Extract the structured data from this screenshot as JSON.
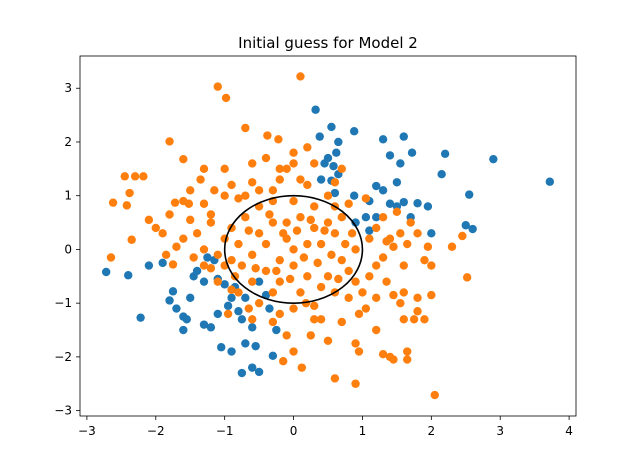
{
  "chart_data": {
    "type": "scatter",
    "title": "Initial guess for Model 2",
    "xlabel": "",
    "ylabel": "",
    "xlim": [
      -3.1,
      4.1
    ],
    "ylim": [
      -3.1,
      3.6
    ],
    "xticks": [
      -3,
      -2,
      -1,
      0,
      1,
      2,
      3,
      4
    ],
    "xtick_labels": [
      "−3",
      "−2",
      "−1",
      "0",
      "1",
      "2",
      "3",
      "4"
    ],
    "yticks": [
      -3,
      -2,
      -1,
      0,
      1,
      2,
      3
    ],
    "ytick_labels": [
      "−3",
      "−2",
      "−1",
      "0",
      "1",
      "2",
      "3"
    ],
    "grid": false,
    "legend": "none",
    "colors": {
      "blue": "#1f77b4",
      "orange": "#ff7f0e",
      "circle": "#000000"
    },
    "circle": {
      "center": [
        0,
        0
      ],
      "radius": 1
    },
    "series": [
      {
        "color": "#1f77b4",
        "points": [
          [
            3.72,
            1.26
          ],
          [
            2.9,
            1.68
          ],
          [
            2.55,
            1.02
          ],
          [
            2.6,
            0.38
          ],
          [
            2.5,
            0.45
          ],
          [
            2.2,
            1.78
          ],
          [
            2.15,
            1.4
          ],
          [
            1.72,
            1.8
          ],
          [
            1.6,
            2.1
          ],
          [
            1.55,
            1.6
          ],
          [
            1.3,
            2.05
          ],
          [
            1.4,
            1.75
          ],
          [
            0.88,
            2.2
          ],
          [
            0.65,
            2.0
          ],
          [
            0.62,
            1.8
          ],
          [
            0.65,
            1.4
          ],
          [
            0.55,
            2.28
          ],
          [
            0.38,
            2.1
          ],
          [
            0.32,
            2.6
          ],
          [
            0.45,
            1.6
          ],
          [
            0.5,
            1.7
          ],
          [
            0.58,
            1.55
          ],
          [
            0.4,
            1.3
          ],
          [
            0.55,
            1.28
          ],
          [
            0.6,
            1.05
          ],
          [
            0.88,
            1.0
          ],
          [
            1.05,
            0.6
          ],
          [
            1.2,
            1.18
          ],
          [
            1.3,
            1.1
          ],
          [
            1.4,
            0.85
          ],
          [
            1.5,
            0.8
          ],
          [
            1.6,
            0.88
          ],
          [
            1.7,
            0.6
          ],
          [
            1.8,
            0.86
          ],
          [
            1.95,
            0.8
          ],
          [
            2.0,
            0.3
          ],
          [
            1.1,
            0.9
          ],
          [
            1.2,
            0.6
          ],
          [
            0.9,
            0.5
          ],
          [
            1.5,
            1.25
          ],
          [
            -2.72,
            -0.42
          ],
          [
            -2.4,
            -0.48
          ],
          [
            -2.22,
            -1.27
          ],
          [
            -1.9,
            -0.25
          ],
          [
            -1.8,
            -0.95
          ],
          [
            -1.75,
            -0.78
          ],
          [
            -1.7,
            -1.1
          ],
          [
            -1.6,
            -1.25
          ],
          [
            -1.55,
            -1.3
          ],
          [
            -1.5,
            -0.9
          ],
          [
            -1.45,
            -0.5
          ],
          [
            -1.4,
            -0.4
          ],
          [
            -1.3,
            -0.6
          ],
          [
            -1.3,
            -1.4
          ],
          [
            -1.2,
            -1.45
          ],
          [
            -1.15,
            -0.2
          ],
          [
            -1.1,
            -0.55
          ],
          [
            -1.0,
            -0.65
          ],
          [
            -0.95,
            -1.05
          ],
          [
            -0.9,
            -0.9
          ],
          [
            -1.05,
            -1.82
          ],
          [
            -0.9,
            -1.9
          ],
          [
            -0.85,
            -0.7
          ],
          [
            -0.7,
            -0.9
          ],
          [
            -0.75,
            -1.3
          ],
          [
            -0.7,
            -1.75
          ],
          [
            -0.6,
            -2.2
          ],
          [
            -0.75,
            -2.3
          ],
          [
            -0.5,
            -2.28
          ],
          [
            -0.55,
            -1.8
          ],
          [
            -0.3,
            -1.98
          ],
          [
            -0.25,
            -1.5
          ],
          [
            -0.35,
            -1.1
          ],
          [
            -0.4,
            -0.85
          ],
          [
            -1.25,
            -0.15
          ],
          [
            -0.8,
            -1.15
          ],
          [
            -1.1,
            -1.2
          ],
          [
            -0.6,
            -1.45
          ],
          [
            -2.1,
            -0.3
          ],
          [
            -1.6,
            -1.5
          ],
          [
            -0.5,
            -0.6
          ],
          [
            1.1,
            0.35
          ]
        ]
      },
      {
        "color": "#ff7f0e",
        "points": [
          [
            0.1,
            3.22
          ],
          [
            -1.1,
            3.03
          ],
          [
            -0.98,
            2.82
          ],
          [
            -0.7,
            2.26
          ],
          [
            -0.38,
            2.12
          ],
          [
            -0.22,
            2.05
          ],
          [
            -1.8,
            2.01
          ],
          [
            -1.6,
            1.68
          ],
          [
            -1.3,
            1.5
          ],
          [
            -1.35,
            1.3
          ],
          [
            -0.6,
            1.6
          ],
          [
            -0.4,
            1.7
          ],
          [
            -0.2,
            1.5
          ],
          [
            0.0,
            1.8
          ],
          [
            0.2,
            1.9
          ],
          [
            0.3,
            1.6
          ],
          [
            -0.1,
            1.5
          ],
          [
            -1.0,
            1.5
          ],
          [
            -1.15,
            1.1
          ],
          [
            -1.0,
            1.0
          ],
          [
            -0.8,
            0.95
          ],
          [
            -0.6,
            1.25
          ],
          [
            -0.5,
            1.1
          ],
          [
            0.1,
            1.3
          ],
          [
            0.5,
            1.0
          ],
          [
            -2.3,
            1.36
          ],
          [
            -2.45,
            1.36
          ],
          [
            -2.38,
            1.05
          ],
          [
            -2.42,
            0.82
          ],
          [
            -2.62,
            0.87
          ],
          [
            -2.18,
            1.36
          ],
          [
            -1.72,
            0.87
          ],
          [
            -1.52,
            0.85
          ],
          [
            -1.3,
            0.85
          ],
          [
            -1.8,
            0.65
          ],
          [
            -1.2,
            0.65
          ],
          [
            -1.4,
            0.3
          ],
          [
            -1.6,
            0.2
          ],
          [
            -1.5,
            0.55
          ],
          [
            -1.9,
            0.3
          ],
          [
            -2.1,
            0.55
          ],
          [
            -2.35,
            0.18
          ],
          [
            -2.65,
            -0.15
          ],
          [
            -1.85,
            -0.1
          ],
          [
            -1.75,
            -0.28
          ],
          [
            -1.45,
            -0.15
          ],
          [
            -1.3,
            -0.3
          ],
          [
            -1.3,
            0.0
          ],
          [
            -1.2,
            -0.35
          ],
          [
            -1.0,
            -0.3
          ],
          [
            -1.1,
            -0.6
          ],
          [
            -0.9,
            -0.75
          ],
          [
            -0.85,
            -0.5
          ],
          [
            -0.95,
            -1.2
          ],
          [
            -0.65,
            -1.1
          ],
          [
            -0.6,
            -1.3
          ],
          [
            -0.3,
            -1.35
          ],
          [
            -0.1,
            -1.6
          ],
          [
            0.0,
            -1.9
          ],
          [
            0.12,
            -2.2
          ],
          [
            0.25,
            -1.6
          ],
          [
            0.3,
            -1.3
          ],
          [
            0.18,
            -1.0
          ],
          [
            -0.15,
            -2.08
          ],
          [
            0.5,
            -1.7
          ],
          [
            0.6,
            -2.4
          ],
          [
            0.9,
            -1.75
          ],
          [
            0.9,
            -2.5
          ],
          [
            0.95,
            -1.9
          ],
          [
            0.95,
            -1.2
          ],
          [
            1.2,
            -1.5
          ],
          [
            1.3,
            -1.95
          ],
          [
            1.4,
            -2.0
          ],
          [
            1.45,
            -2.05
          ],
          [
            1.65,
            -2.05
          ],
          [
            1.65,
            -1.9
          ],
          [
            1.6,
            -1.3
          ],
          [
            1.75,
            -1.3
          ],
          [
            1.8,
            -1.15
          ],
          [
            1.9,
            -1.3
          ],
          [
            1.55,
            -1.0
          ],
          [
            1.6,
            -0.8
          ],
          [
            1.8,
            -0.9
          ],
          [
            2.0,
            -0.85
          ],
          [
            1.35,
            -0.6
          ],
          [
            1.45,
            -0.85
          ],
          [
            1.1,
            -0.5
          ],
          [
            1.2,
            -0.3
          ],
          [
            0.9,
            -0.6
          ],
          [
            1.3,
            -0.15
          ],
          [
            1.6,
            -0.3
          ],
          [
            1.9,
            -0.2
          ],
          [
            2.0,
            -0.3
          ],
          [
            1.65,
            0.1
          ],
          [
            1.8,
            0.3
          ],
          [
            1.95,
            0.05
          ],
          [
            2.3,
            0.05
          ],
          [
            2.45,
            0.25
          ],
          [
            2.52,
            -0.52
          ],
          [
            2.05,
            -2.71
          ],
          [
            1.1,
            0.2
          ],
          [
            1.2,
            0.4
          ],
          [
            1.3,
            0.6
          ],
          [
            1.35,
            0.15
          ],
          [
            1.45,
            0.05
          ],
          [
            1.55,
            0.3
          ],
          [
            1.5,
            0.7
          ],
          [
            1.7,
            0.5
          ],
          [
            0.6,
            0.8
          ],
          [
            0.85,
            0.3
          ],
          [
            0.7,
            -0.2
          ],
          [
            0.5,
            -0.5
          ],
          [
            0.3,
            0.4
          ],
          [
            0.1,
            0.6
          ],
          [
            -0.1,
            0.2
          ],
          [
            -0.2,
            -0.2
          ],
          [
            -0.3,
            0.5
          ],
          [
            -0.5,
            0.3
          ],
          [
            -0.6,
            -0.1
          ],
          [
            -0.4,
            -0.4
          ],
          [
            -0.2,
            -0.6
          ],
          [
            0.0,
            -0.3
          ],
          [
            0.2,
            -0.5
          ],
          [
            0.4,
            0.1
          ],
          [
            0.6,
            0.3
          ],
          [
            0.4,
            -0.7
          ],
          [
            -0.7,
            0.6
          ],
          [
            -0.8,
            0.1
          ],
          [
            -0.9,
            -0.2
          ],
          [
            -0.5,
            0.8
          ],
          [
            0.0,
            0.9
          ],
          [
            0.3,
            0.8
          ],
          [
            -0.3,
            0.9
          ],
          [
            0.7,
            0.6
          ],
          [
            0.8,
            -0.4
          ],
          [
            0.6,
            -0.8
          ],
          [
            0.1,
            -0.8
          ],
          [
            -0.3,
            -0.8
          ],
          [
            -0.6,
            -0.6
          ],
          [
            0.2,
            0.1
          ],
          [
            -0.1,
            0.5
          ],
          [
            0.5,
            0.5
          ],
          [
            -0.4,
            0.1
          ],
          [
            0.0,
            0.0
          ],
          [
            0.15,
            -0.15
          ],
          [
            -0.15,
            0.3
          ],
          [
            0.35,
            -0.25
          ],
          [
            -0.65,
            0.35
          ],
          [
            0.75,
            0.1
          ],
          [
            -0.25,
            -0.4
          ],
          [
            0.45,
            0.35
          ],
          [
            -0.55,
            -0.35
          ],
          [
            0.25,
            0.55
          ],
          [
            -0.05,
            -0.55
          ],
          [
            0.65,
            -0.55
          ],
          [
            -0.75,
            -0.3
          ],
          [
            0.9,
            0.0
          ],
          [
            -0.9,
            0.4
          ],
          [
            0.05,
            0.35
          ],
          [
            -0.35,
            0.65
          ],
          [
            0.55,
            -0.1
          ],
          [
            0.0,
            -1.1
          ],
          [
            0.3,
            -1.05
          ],
          [
            -0.2,
            -1.2
          ],
          [
            0.4,
            -1.3
          ],
          [
            -0.5,
            -1.0
          ],
          [
            -0.8,
            -0.8
          ],
          [
            0.8,
            -0.9
          ],
          [
            -1.2,
            0.5
          ],
          [
            -1.0,
            0.2
          ],
          [
            -1.1,
            -0.1
          ],
          [
            -0.7,
            1.0
          ],
          [
            -0.3,
            1.1
          ],
          [
            0.2,
            1.2
          ],
          [
            0.6,
            1.25
          ],
          [
            0.8,
            0.85
          ],
          [
            1.05,
            0.95
          ],
          [
            1.4,
            0.2
          ],
          [
            -1.6,
            0.9
          ],
          [
            -1.5,
            1.1
          ],
          [
            -2.0,
            0.4
          ],
          [
            -1.7,
            0.05
          ],
          [
            -0.2,
            1.3
          ],
          [
            0.0,
            1.6
          ],
          [
            0.7,
            1.5
          ],
          [
            -0.9,
            1.2
          ],
          [
            1.0,
            -0.8
          ],
          [
            1.2,
            -0.9
          ],
          [
            0.7,
            -1.35
          ],
          [
            1.05,
            -1.1
          ]
        ]
      }
    ]
  }
}
